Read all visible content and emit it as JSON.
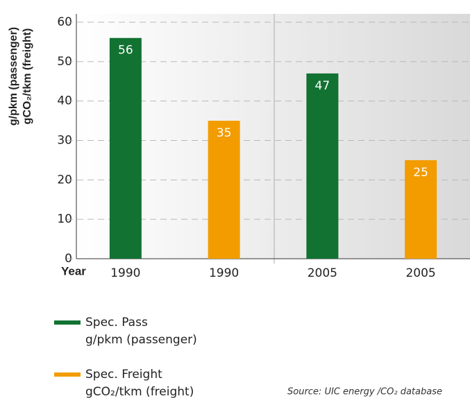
{
  "chart_data": {
    "type": "bar",
    "y_label": [
      "g/pkm (passenger)",
      "gCO₂/tkm (freight)"
    ],
    "x_label": "Year",
    "categories": [
      "1990",
      "1990",
      "2005",
      "2005"
    ],
    "series": [
      {
        "name": "Spec. Pass",
        "unit": "g/pkm (passenger)",
        "color": "#127232",
        "values": [
          56,
          null,
          47,
          null
        ]
      },
      {
        "name": "Spec. Freight",
        "unit": "gCO₂/tkm (freight)",
        "color": "#f29c00",
        "values": [
          null,
          35,
          null,
          25
        ]
      }
    ],
    "ylim": [
      0,
      60
    ],
    "yticks": [
      0,
      10,
      20,
      30,
      40,
      50,
      60
    ],
    "grid": true,
    "source": "Source: UIC energy /CO₂ database"
  }
}
